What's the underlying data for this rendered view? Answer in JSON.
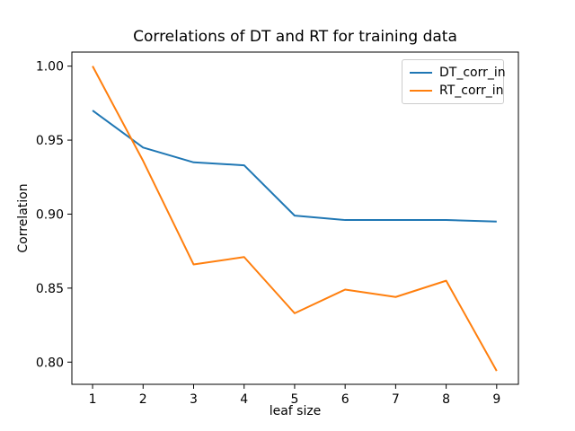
{
  "figure": {
    "background": "#ffffff",
    "frame_color": "#000000",
    "tick_color": "#000000",
    "legend_border_color": "#cccccc"
  },
  "chart_data": {
    "type": "line",
    "title": "Correlations of DT and RT for training data",
    "xlabel": "leaf size",
    "ylabel": "Correlation",
    "x": [
      1,
      2,
      3,
      4,
      5,
      6,
      7,
      8,
      9
    ],
    "series": [
      {
        "name": "DT_corr_in",
        "color": "#1f77b4",
        "values": [
          0.97,
          0.945,
          0.935,
          0.933,
          0.899,
          0.896,
          0.896,
          0.896,
          0.895
        ]
      },
      {
        "name": "RT_corr_in",
        "color": "#ff7f0e",
        "values": [
          1.0,
          0.936,
          0.866,
          0.871,
          0.833,
          0.849,
          0.844,
          0.855,
          0.794
        ]
      }
    ],
    "xticks": [
      "1",
      "2",
      "3",
      "4",
      "5",
      "6",
      "7",
      "8",
      "9"
    ],
    "xtick_values": [
      1,
      2,
      3,
      4,
      5,
      6,
      7,
      8,
      9
    ],
    "ytick_labels": [
      "0.80",
      "0.85",
      "0.90",
      "0.95",
      "1.00"
    ],
    "ytick_values": [
      0.8,
      0.85,
      0.9,
      0.95,
      1.0
    ],
    "xlim": [
      0.59,
      9.43
    ],
    "ylim": [
      0.785,
      1.0095
    ],
    "grid": false,
    "legend": {
      "position": "upper right",
      "entries": [
        "DT_corr_in",
        "RT_corr_in"
      ]
    }
  }
}
